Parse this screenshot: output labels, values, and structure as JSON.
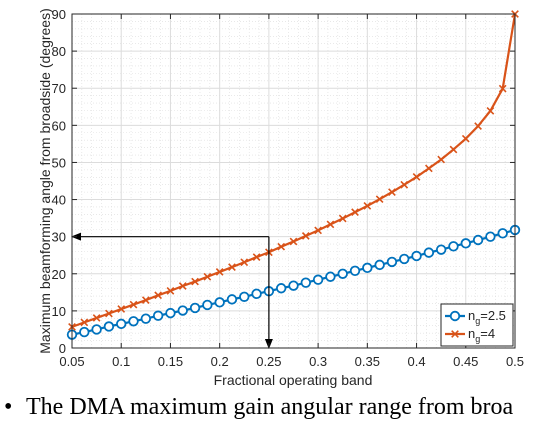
{
  "chart_data": {
    "type": "line",
    "xlabel": "Fractional operating band",
    "ylabel": "Maximum beamforming angle from broadside (degrees)",
    "xlim": [
      0.05,
      0.5
    ],
    "ylim": [
      0,
      90
    ],
    "xticks": [
      "0.05",
      "0.1",
      "0.15",
      "0.2",
      "0.25",
      "0.3",
      "0.35",
      "0.4",
      "0.45",
      "0.5"
    ],
    "yticks": [
      "0",
      "10",
      "20",
      "30",
      "40",
      "50",
      "60",
      "70",
      "80",
      "90"
    ],
    "grid": true,
    "legend_position": "bottom-right",
    "series": [
      {
        "name": "n_g=2.5",
        "legend_main": "n",
        "legend_sub": "g",
        "legend_tail": "=2.5",
        "marker": "circle",
        "color": "#0072BD",
        "x": [
          0.05,
          0.0625,
          0.075,
          0.0875,
          0.1,
          0.1125,
          0.125,
          0.1375,
          0.15,
          0.1625,
          0.175,
          0.1875,
          0.2,
          0.2125,
          0.225,
          0.2375,
          0.25,
          0.2625,
          0.275,
          0.2875,
          0.3,
          0.3125,
          0.325,
          0.3375,
          0.35,
          0.3625,
          0.375,
          0.3875,
          0.4,
          0.4125,
          0.425,
          0.4375,
          0.45,
          0.4625,
          0.475,
          0.4875,
          0.5
        ],
        "y": [
          3.6,
          4.3,
          5.0,
          5.8,
          6.5,
          7.2,
          7.9,
          8.7,
          9.4,
          10.1,
          10.8,
          11.6,
          12.3,
          13.1,
          13.8,
          14.6,
          15.3,
          16.1,
          16.8,
          17.6,
          18.4,
          19.2,
          20.0,
          20.8,
          21.6,
          22.4,
          23.2,
          24.0,
          24.8,
          25.7,
          26.5,
          27.4,
          28.2,
          29.1,
          30.0,
          30.9,
          31.8
        ]
      },
      {
        "name": "n_g=4",
        "legend_main": "n",
        "legend_sub": "g",
        "legend_tail": "=4",
        "marker": "x",
        "color": "#D95319",
        "x": [
          0.05,
          0.0625,
          0.075,
          0.0875,
          0.1,
          0.1125,
          0.125,
          0.1375,
          0.15,
          0.1625,
          0.175,
          0.1875,
          0.2,
          0.2125,
          0.225,
          0.2375,
          0.25,
          0.2625,
          0.275,
          0.2875,
          0.3,
          0.3125,
          0.325,
          0.3375,
          0.35,
          0.3625,
          0.375,
          0.3875,
          0.4,
          0.4125,
          0.425,
          0.4375,
          0.45,
          0.4625,
          0.475,
          0.4875,
          0.5
        ],
        "y": [
          5.7,
          6.9,
          8.1,
          9.3,
          10.5,
          11.7,
          12.9,
          14.2,
          15.4,
          16.7,
          17.9,
          19.2,
          20.5,
          21.8,
          23.1,
          24.5,
          25.8,
          27.3,
          28.7,
          30.2,
          31.7,
          33.3,
          34.9,
          36.6,
          38.3,
          40.1,
          42.0,
          44.0,
          46.1,
          48.4,
          50.8,
          53.5,
          56.4,
          59.8,
          63.9,
          69.9,
          90.0
        ]
      }
    ],
    "annotations": [
      {
        "type": "arrow",
        "from": [
          0.25,
          30
        ],
        "to": [
          0.05,
          30
        ]
      },
      {
        "type": "arrow",
        "from": [
          0.25,
          30
        ],
        "to": [
          0.25,
          0
        ]
      }
    ]
  },
  "caption": {
    "bullet": "•",
    "text": "The DMA maximum gain angular range from broa"
  }
}
